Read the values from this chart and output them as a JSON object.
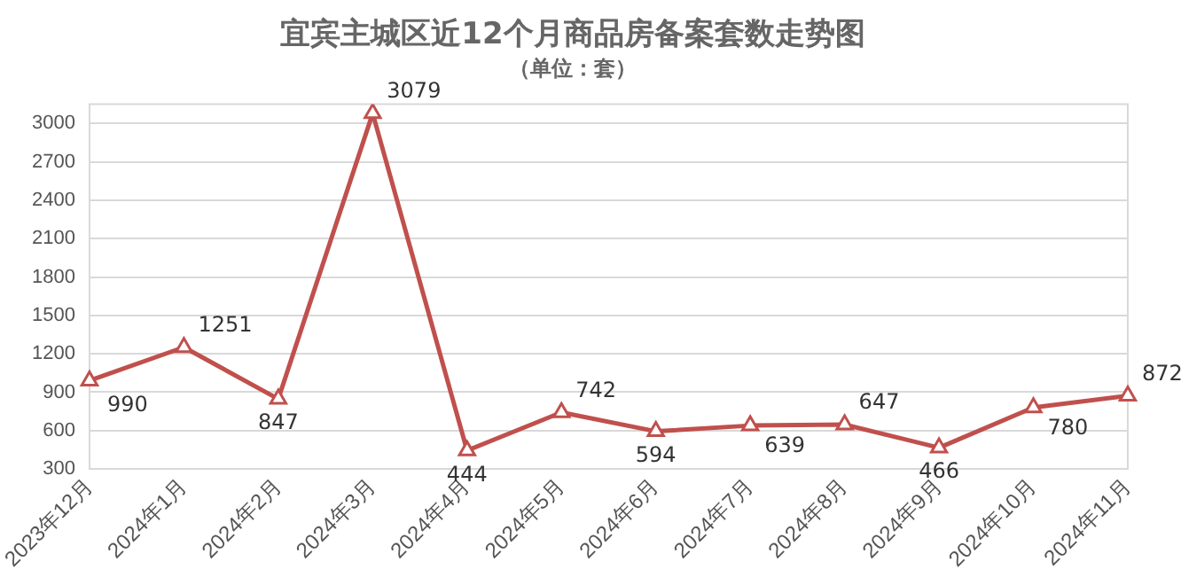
{
  "chart_data": {
    "type": "line",
    "title": "宜宾主城区近12个月商品房备案套数走势图",
    "subtitle": "（单位：套）",
    "categories": [
      "2023年12月",
      "2024年1月",
      "2024年2月",
      "2024年3月",
      "2024年4月",
      "2024年5月",
      "2024年6月",
      "2024年7月",
      "2024年8月",
      "2024年9月",
      "2024年10月",
      "2024年11月"
    ],
    "series": [
      {
        "color": "#c0504d",
        "values": [
          990,
          1251,
          847,
          3079,
          444,
          742,
          594,
          639,
          647,
          466,
          780,
          872
        ]
      }
    ],
    "ylim": [
      300,
      3150
    ],
    "yticks": [
      300,
      600,
      900,
      1200,
      1500,
      1800,
      2100,
      2400,
      2700,
      3000
    ],
    "grid": "y",
    "legend": false,
    "marker": "triangle",
    "line_style": "solid",
    "data_labels": true
  }
}
